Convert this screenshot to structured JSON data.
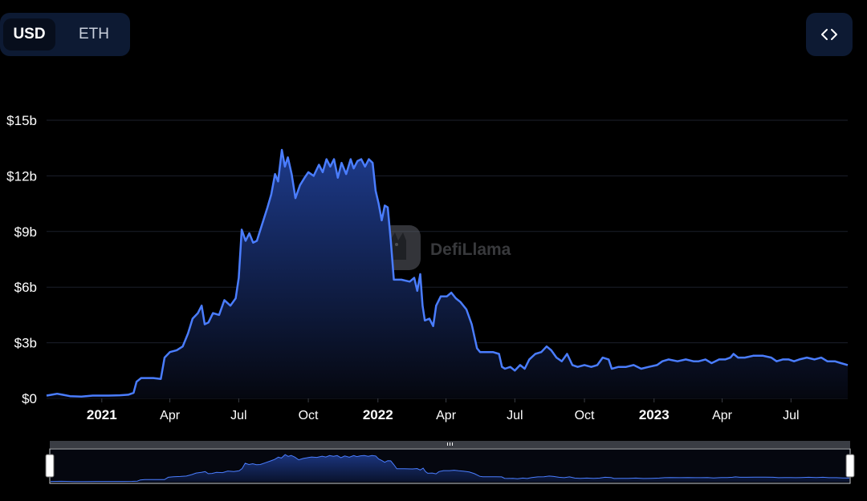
{
  "currency_toggle": {
    "options": [
      {
        "label": "USD",
        "selected": true
      },
      {
        "label": "ETH",
        "selected": false
      }
    ]
  },
  "embed_button": {
    "icon": "code-brackets-icon"
  },
  "watermark": {
    "text": "DefiLlama"
  },
  "colors": {
    "line": "#4a7dff",
    "fill_top": "#1d3a8a",
    "fill_bottom": "#05070f",
    "grid": "#1b1f2b",
    "button_bg": "#0d1a33"
  },
  "chart_data": {
    "type": "area",
    "title": "",
    "xlabel": "",
    "ylabel": "",
    "y_unit": "USD (billions)",
    "ylim": [
      0,
      15
    ],
    "y_ticks": [
      {
        "value": 0,
        "label": "$0"
      },
      {
        "value": 3,
        "label": "$3b"
      },
      {
        "value": 6,
        "label": "$6b"
      },
      {
        "value": 9,
        "label": "$9b"
      },
      {
        "value": 12,
        "label": "$12b"
      },
      {
        "value": 15,
        "label": "$15b"
      }
    ],
    "xlim": [
      "2020-10-20",
      "2023-09-14"
    ],
    "x_ticks": [
      {
        "date": "2021-01-01",
        "label": "2021",
        "bold": true
      },
      {
        "date": "2021-04-01",
        "label": "Apr",
        "bold": false
      },
      {
        "date": "2021-07-01",
        "label": "Jul",
        "bold": false
      },
      {
        "date": "2021-10-01",
        "label": "Oct",
        "bold": false
      },
      {
        "date": "2022-01-01",
        "label": "2022",
        "bold": true
      },
      {
        "date": "2022-04-01",
        "label": "Apr",
        "bold": false
      },
      {
        "date": "2022-07-01",
        "label": "Jul",
        "bold": false
      },
      {
        "date": "2022-10-01",
        "label": "Oct",
        "bold": false
      },
      {
        "date": "2023-01-01",
        "label": "2023",
        "bold": true
      },
      {
        "date": "2023-04-01",
        "label": "Apr",
        "bold": false
      },
      {
        "date": "2023-07-01",
        "label": "Jul",
        "bold": false
      }
    ],
    "grid": true,
    "legend": "none",
    "series": [
      {
        "points": [
          [
            "2020-10-20",
            0.15
          ],
          [
            "2020-10-27",
            0.2
          ],
          [
            "2020-11-03",
            0.25
          ],
          [
            "2020-11-10",
            0.2
          ],
          [
            "2020-11-20",
            0.12
          ],
          [
            "2020-12-05",
            0.1
          ],
          [
            "2020-12-20",
            0.15
          ],
          [
            "2021-01-10",
            0.15
          ],
          [
            "2021-01-25",
            0.17
          ],
          [
            "2021-02-05",
            0.2
          ],
          [
            "2021-02-12",
            0.3
          ],
          [
            "2021-02-16",
            0.9
          ],
          [
            "2021-02-22",
            1.1
          ],
          [
            "2021-03-10",
            1.1
          ],
          [
            "2021-03-20",
            1.05
          ],
          [
            "2021-03-25",
            2.2
          ],
          [
            "2021-04-01",
            2.5
          ],
          [
            "2021-04-10",
            2.6
          ],
          [
            "2021-04-18",
            2.8
          ],
          [
            "2021-04-25",
            3.5
          ],
          [
            "2021-05-01",
            4.3
          ],
          [
            "2021-05-08",
            4.6
          ],
          [
            "2021-05-13",
            5.0
          ],
          [
            "2021-05-17",
            4.0
          ],
          [
            "2021-05-22",
            4.1
          ],
          [
            "2021-05-28",
            4.6
          ],
          [
            "2021-06-05",
            4.5
          ],
          [
            "2021-06-12",
            5.3
          ],
          [
            "2021-06-20",
            5.0
          ],
          [
            "2021-06-27",
            5.4
          ],
          [
            "2021-07-01",
            6.5
          ],
          [
            "2021-07-05",
            9.1
          ],
          [
            "2021-07-10",
            8.5
          ],
          [
            "2021-07-15",
            8.9
          ],
          [
            "2021-07-20",
            8.4
          ],
          [
            "2021-07-25",
            8.5
          ],
          [
            "2021-08-01",
            9.4
          ],
          [
            "2021-08-08",
            10.3
          ],
          [
            "2021-08-13",
            11.0
          ],
          [
            "2021-08-18",
            12.1
          ],
          [
            "2021-08-22",
            11.7
          ],
          [
            "2021-08-27",
            13.4
          ],
          [
            "2021-08-31",
            12.5
          ],
          [
            "2021-09-04",
            13.0
          ],
          [
            "2021-09-09",
            12.1
          ],
          [
            "2021-09-14",
            10.8
          ],
          [
            "2021-09-20",
            11.5
          ],
          [
            "2021-09-26",
            11.9
          ],
          [
            "2021-10-01",
            12.2
          ],
          [
            "2021-10-08",
            12.0
          ],
          [
            "2021-10-15",
            12.6
          ],
          [
            "2021-10-20",
            12.2
          ],
          [
            "2021-10-25",
            12.9
          ],
          [
            "2021-10-30",
            12.5
          ],
          [
            "2021-11-04",
            12.9
          ],
          [
            "2021-11-09",
            11.9
          ],
          [
            "2021-11-14",
            12.7
          ],
          [
            "2021-11-20",
            12.1
          ],
          [
            "2021-11-26",
            12.9
          ],
          [
            "2021-11-30",
            12.4
          ],
          [
            "2021-12-05",
            12.8
          ],
          [
            "2021-12-10",
            12.9
          ],
          [
            "2021-12-15",
            12.5
          ],
          [
            "2021-12-20",
            12.9
          ],
          [
            "2021-12-25",
            12.7
          ],
          [
            "2021-12-29",
            11.2
          ],
          [
            "2022-01-02",
            10.5
          ],
          [
            "2022-01-06",
            9.6
          ],
          [
            "2022-01-10",
            10.4
          ],
          [
            "2022-01-14",
            10.3
          ],
          [
            "2022-01-18",
            8.5
          ],
          [
            "2022-01-22",
            6.4
          ],
          [
            "2022-02-01",
            6.4
          ],
          [
            "2022-02-12",
            6.3
          ],
          [
            "2022-02-18",
            6.5
          ],
          [
            "2022-02-22",
            5.8
          ],
          [
            "2022-02-26",
            6.7
          ],
          [
            "2022-03-01",
            5.0
          ],
          [
            "2022-03-04",
            4.2
          ],
          [
            "2022-03-10",
            4.3
          ],
          [
            "2022-03-15",
            3.9
          ],
          [
            "2022-03-19",
            5.0
          ],
          [
            "2022-03-25",
            5.5
          ],
          [
            "2022-04-02",
            5.5
          ],
          [
            "2022-04-08",
            5.7
          ],
          [
            "2022-04-14",
            5.4
          ],
          [
            "2022-04-20",
            5.2
          ],
          [
            "2022-04-28",
            4.8
          ],
          [
            "2022-05-05",
            4.0
          ],
          [
            "2022-05-12",
            2.7
          ],
          [
            "2022-05-16",
            2.5
          ],
          [
            "2022-05-25",
            2.5
          ],
          [
            "2022-06-02",
            2.5
          ],
          [
            "2022-06-10",
            2.4
          ],
          [
            "2022-06-14",
            1.7
          ],
          [
            "2022-06-18",
            1.6
          ],
          [
            "2022-06-25",
            1.7
          ],
          [
            "2022-07-01",
            1.5
          ],
          [
            "2022-07-08",
            1.8
          ],
          [
            "2022-07-14",
            1.6
          ],
          [
            "2022-07-20",
            2.1
          ],
          [
            "2022-07-28",
            2.4
          ],
          [
            "2022-08-05",
            2.5
          ],
          [
            "2022-08-12",
            2.8
          ],
          [
            "2022-08-18",
            2.6
          ],
          [
            "2022-08-25",
            2.2
          ],
          [
            "2022-09-01",
            2.0
          ],
          [
            "2022-09-08",
            2.4
          ],
          [
            "2022-09-15",
            1.8
          ],
          [
            "2022-09-22",
            1.7
          ],
          [
            "2022-10-01",
            1.8
          ],
          [
            "2022-10-10",
            1.7
          ],
          [
            "2022-10-18",
            1.8
          ],
          [
            "2022-10-25",
            2.2
          ],
          [
            "2022-11-02",
            2.1
          ],
          [
            "2022-11-06",
            1.6
          ],
          [
            "2022-11-15",
            1.7
          ],
          [
            "2022-11-25",
            1.7
          ],
          [
            "2022-12-05",
            1.8
          ],
          [
            "2022-12-15",
            1.6
          ],
          [
            "2022-12-25",
            1.7
          ],
          [
            "2023-01-05",
            1.8
          ],
          [
            "2023-01-12",
            2.0
          ],
          [
            "2023-01-20",
            2.1
          ],
          [
            "2023-02-01",
            2.0
          ],
          [
            "2023-02-12",
            2.1
          ],
          [
            "2023-02-22",
            2.0
          ],
          [
            "2023-03-01",
            2.0
          ],
          [
            "2023-03-10",
            2.1
          ],
          [
            "2023-03-18",
            1.9
          ],
          [
            "2023-03-28",
            2.1
          ],
          [
            "2023-04-05",
            2.1
          ],
          [
            "2023-04-12",
            2.2
          ],
          [
            "2023-04-16",
            2.4
          ],
          [
            "2023-04-22",
            2.2
          ],
          [
            "2023-05-01",
            2.2
          ],
          [
            "2023-05-12",
            2.3
          ],
          [
            "2023-05-25",
            2.3
          ],
          [
            "2023-06-05",
            2.2
          ],
          [
            "2023-06-12",
            2.0
          ],
          [
            "2023-06-20",
            2.1
          ],
          [
            "2023-06-28",
            2.1
          ],
          [
            "2023-07-05",
            2.0
          ],
          [
            "2023-07-12",
            2.1
          ],
          [
            "2023-07-22",
            2.2
          ],
          [
            "2023-08-01",
            2.1
          ],
          [
            "2023-08-10",
            2.2
          ],
          [
            "2023-08-18",
            2.0
          ],
          [
            "2023-08-28",
            2.0
          ],
          [
            "2023-09-05",
            1.9
          ],
          [
            "2023-09-14",
            1.8
          ]
        ]
      }
    ]
  }
}
